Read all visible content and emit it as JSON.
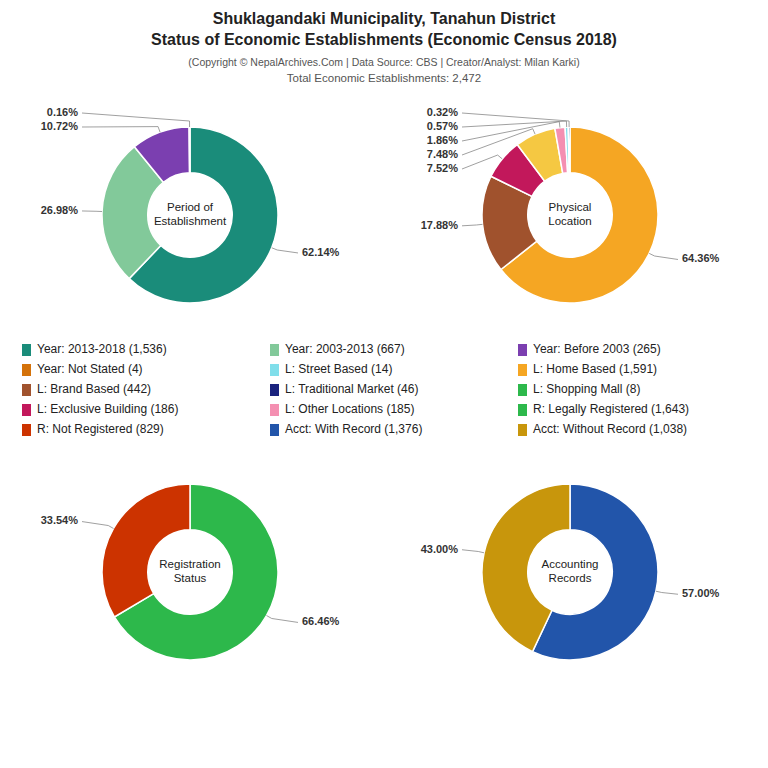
{
  "title": [
    "Shuklagandaki Municipality, Tanahun District",
    "Status of Economic Establishments (Economic Census 2018)"
  ],
  "subtitle": [
    "(Copyright © NepalArchives.Com | Data Source: CBS | Creator/Analyst: Milan Karki)",
    "Total Economic Establishments: 2,472"
  ],
  "legend_entries": [
    {
      "label": "Year: 2013-2018 (1,536)",
      "color": "#1a8c7a"
    },
    {
      "label": "Year: 2003-2013 (667)",
      "color": "#82c99a"
    },
    {
      "label": "Year: Before 2003 (265)",
      "color": "#7b3fb0"
    },
    {
      "label": "Year: Not Stated (4)",
      "color": "#d4720a"
    },
    {
      "label": "L: Street Based (14)",
      "color": "#80deea"
    },
    {
      "label": "L: Home Based (1,591)",
      "color": "#f5a623"
    },
    {
      "label": "L: Brand Based (442)",
      "color": "#a0522d"
    },
    {
      "label": "L: Traditional Market (46)",
      "color": "#1a237e"
    },
    {
      "label": "L: Shopping Mall (8)",
      "color": "#2db84b"
    },
    {
      "label": "L: Exclusive Building (186)",
      "color": "#c2185b"
    },
    {
      "label": "L: Other Locations (185)",
      "color": "#f48fb1"
    },
    {
      "label": "R: Legally Registered (1,643)",
      "color": "#2db84b"
    },
    {
      "label": "R: Not Registered (829)",
      "color": "#cc3300"
    },
    {
      "label": "Acct: With Record (1,376)",
      "color": "#2255aa"
    },
    {
      "label": "Acct: Without Record (1,038)",
      "color": "#c8960c"
    }
  ],
  "chart_data": [
    {
      "type": "pie",
      "title": "Period of\nEstablishment",
      "values": [
        62.14,
        26.98,
        10.72,
        0.16
      ],
      "value_labels": [
        "62.14%",
        "26.98%",
        "10.72%",
        "0.16%"
      ],
      "colors": [
        "#1a8c7a",
        "#82c99a",
        "#7b3fb0",
        "#d4720a"
      ],
      "data_labels": true
    },
    {
      "type": "pie",
      "title": "Physical\nLocation",
      "values": [
        64.36,
        17.88,
        7.52,
        7.48,
        1.86,
        0.57,
        0.32
      ],
      "value_labels": [
        "64.36%",
        "17.88%",
        "7.52%",
        "7.48%",
        "1.86%",
        "0.57%",
        "0.32%"
      ],
      "colors": [
        "#f5a623",
        "#a0522d",
        "#c2185b",
        "#f5c842",
        "#f48fb1",
        "#80deea",
        "#1a237e"
      ],
      "data_labels": true
    },
    {
      "type": "pie",
      "title": "Registration\nStatus",
      "values": [
        66.46,
        33.54
      ],
      "value_labels": [
        "66.46%",
        "33.54%"
      ],
      "colors": [
        "#2db84b",
        "#cc3300"
      ],
      "data_labels": true
    },
    {
      "type": "pie",
      "title": "Accounting\nRecords",
      "values": [
        57.0,
        43.0
      ],
      "value_labels": [
        "57.00%",
        "43.00%"
      ],
      "colors": [
        "#2255aa",
        "#c8960c"
      ],
      "data_labels": true
    }
  ]
}
